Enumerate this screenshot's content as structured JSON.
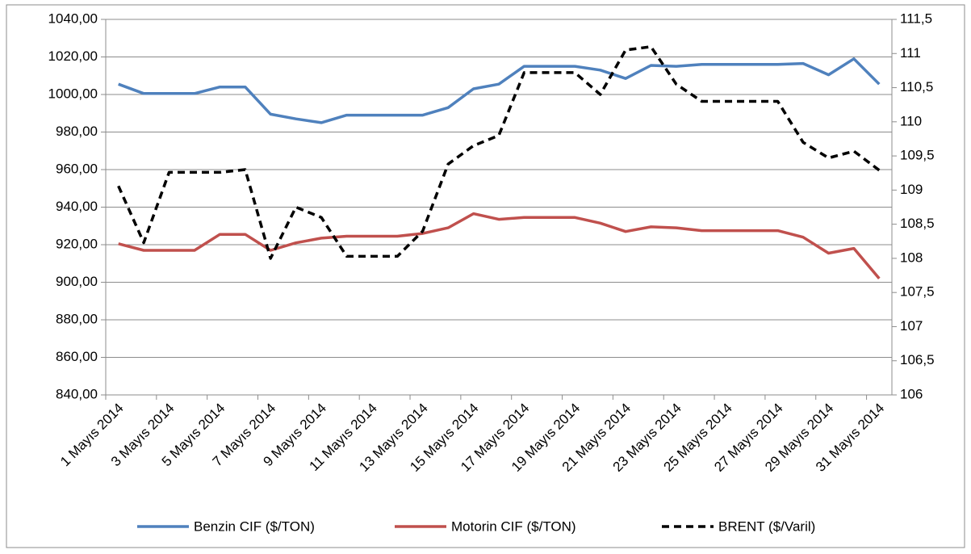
{
  "chart_data": {
    "type": "line",
    "categories": [
      "1 Mayıs 2014",
      null,
      "3 Mayıs 2014",
      null,
      "5 Mayıs 2014",
      null,
      "7 Mayıs 2014",
      null,
      "9 Mayıs 2014",
      null,
      "11 Mayıs 2014",
      null,
      "13 Mayıs 2014",
      null,
      "15 Mayıs 2014",
      null,
      "17 Mayıs 2014",
      null,
      "19 Mayıs 2014",
      null,
      "21 Mayıs 2014",
      null,
      "23 Mayıs 2014",
      null,
      "25 Mayıs 2014",
      null,
      "27 Mayıs 2014",
      null,
      "29 Mayıs 2014",
      null,
      "31 Mayıs 2014"
    ],
    "series": [
      {
        "name": "Benzin CIF ($/TON)",
        "color": "#4f81bd",
        "axis": "y",
        "values": [
          1005.5,
          1000.5,
          1000.5,
          1000.5,
          1004,
          1004,
          989.5,
          987,
          985,
          989,
          989,
          989,
          989,
          993,
          1003,
          1005.5,
          1015,
          1015,
          1015,
          1013,
          1008.5,
          1015.5,
          1015,
          1016,
          1016,
          1016,
          1016,
          1016.5,
          1010.5,
          1019,
          1005.5
        ]
      },
      {
        "name": "Motorin CIF ($/TON)",
        "color": "#c0504d",
        "axis": "y",
        "values": [
          920.5,
          917,
          917,
          917,
          925.5,
          925.5,
          917,
          921,
          923.5,
          924.5,
          924.5,
          924.5,
          926,
          929,
          936.5,
          933.5,
          934.5,
          934.5,
          934.5,
          931.5,
          927,
          929.5,
          929,
          927.5,
          927.5,
          927.5,
          927.5,
          924,
          915.5,
          918,
          902
        ]
      },
      {
        "name": "BRENT ($/Varil)",
        "color": "#000000",
        "dashed": true,
        "axis": "y2",
        "values": [
          109.06,
          108.23,
          109.26,
          109.26,
          109.26,
          109.3,
          108.0,
          108.75,
          108.6,
          108.03,
          108.03,
          108.03,
          108.4,
          109.38,
          109.65,
          109.8,
          110.72,
          110.72,
          110.72,
          110.4,
          111.05,
          111.1,
          110.55,
          110.3,
          110.3,
          110.3,
          110.3,
          109.7,
          109.47,
          109.57,
          109.29
        ]
      }
    ],
    "ylim": [
      840,
      1040
    ],
    "yticks": [
      {
        "value": 840,
        "label": "840,00"
      },
      {
        "value": 860,
        "label": "860,00"
      },
      {
        "value": 880,
        "label": "880,00"
      },
      {
        "value": 900,
        "label": "900,00"
      },
      {
        "value": 920,
        "label": "920,00"
      },
      {
        "value": 940,
        "label": "940,00"
      },
      {
        "value": 960,
        "label": "960,00"
      },
      {
        "value": 980,
        "label": "980,00"
      },
      {
        "value": 1000,
        "label": "1000,00"
      },
      {
        "value": 1020,
        "label": "1020,00"
      },
      {
        "value": 1040,
        "label": "1040,00"
      }
    ],
    "y2lim": [
      106,
      111.5
    ],
    "y2ticks": [
      106,
      {
        "value": 106.5,
        "label": "106,5"
      },
      107,
      {
        "value": 107.5,
        "label": "107,5"
      },
      108,
      {
        "value": 108.5,
        "label": "108,5"
      },
      109,
      {
        "value": 109.5,
        "label": "109,5"
      },
      110,
      {
        "value": 110.5,
        "label": "110,5"
      },
      111,
      {
        "value": 111.5,
        "label": "111,5"
      }
    ],
    "grid": true,
    "legend": "bottom"
  }
}
